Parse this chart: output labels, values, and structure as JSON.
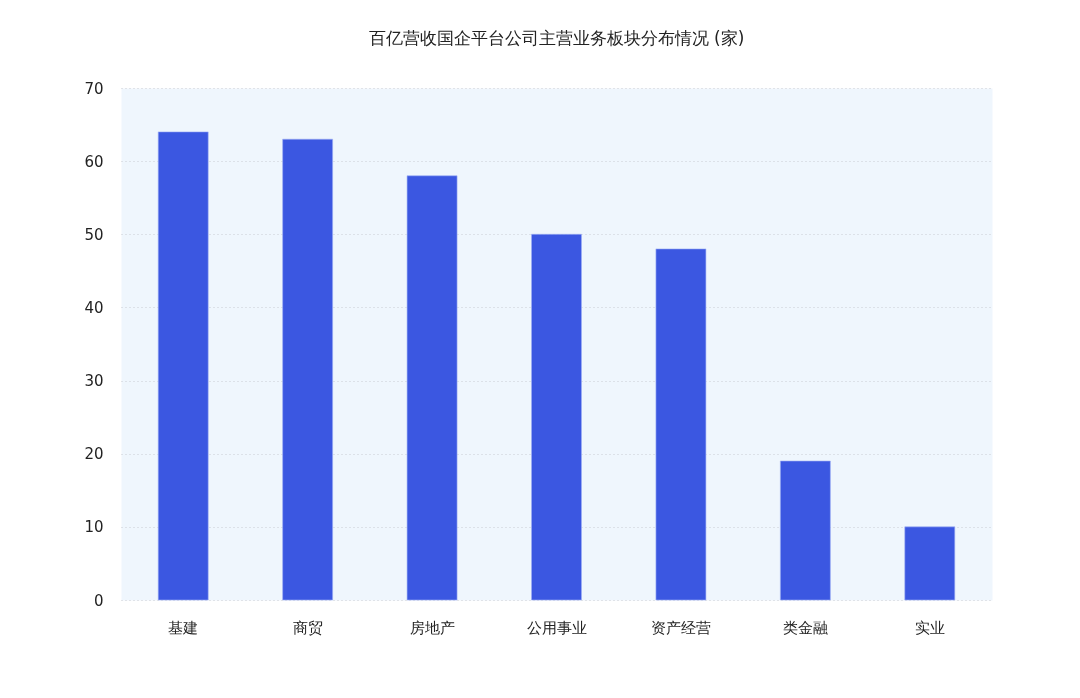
{
  "chart_data": {
    "type": "bar",
    "title": "百亿营收国企平台公司主营业务板块分布情况 (家)",
    "categories": [
      "基建",
      "商贸",
      "房地产",
      "公用事业",
      "资产经营",
      "类金融",
      "实业"
    ],
    "values": [
      64,
      63,
      58,
      50,
      48,
      19,
      10
    ],
    "color": "#3b57e1",
    "ylim": [
      0,
      70
    ],
    "yticks": [
      0,
      10,
      20,
      30,
      40,
      50,
      60,
      70
    ],
    "grid": "y"
  }
}
